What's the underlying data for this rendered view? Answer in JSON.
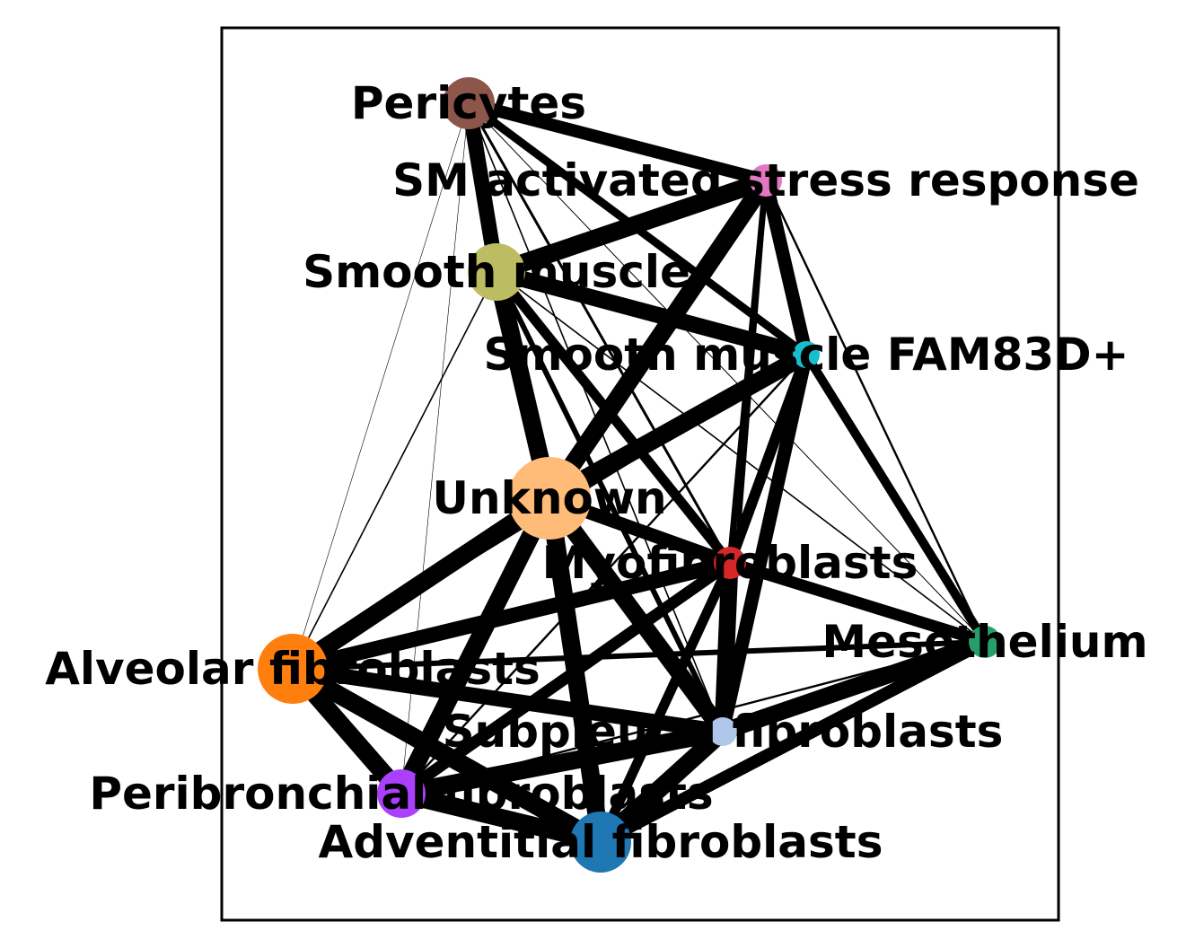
{
  "nodes": [
    {
      "id": "pericytes",
      "label": "Pericytes",
      "color": "#8c564b"
    },
    {
      "id": "sm_activated",
      "label": "SM activated stress response",
      "color": "#e377c2"
    },
    {
      "id": "smooth_muscle",
      "label": "Smooth muscle",
      "color": "#bcbd62"
    },
    {
      "id": "smooth_muscle_fam83d",
      "label": "Smooth muscle FAM83D+",
      "color": "#17becf"
    },
    {
      "id": "unknown",
      "label": "Unknown",
      "color": "#ffbb78"
    },
    {
      "id": "myofibroblasts",
      "label": "Myofibroblasts",
      "color": "#d62728"
    },
    {
      "id": "mesothelium",
      "label": "Mesothelium",
      "color": "#279e68"
    },
    {
      "id": "alveolar_fibroblasts",
      "label": "Alveolar fibroblasts",
      "color": "#ff7f0e"
    },
    {
      "id": "subpleural_fibroblasts",
      "label": "Subpleural fibroblasts",
      "color": "#aec7e8"
    },
    {
      "id": "peribronchial_fibroblasts",
      "label": "Peribronchial fibroblasts",
      "color": "#aa40fc"
    },
    {
      "id": "adventitial_fibroblasts",
      "label": "Adventitial fibroblasts",
      "color": "#1f77b4"
    }
  ],
  "edges": [
    {
      "source": "pericytes",
      "target": "smooth_muscle",
      "weight": 0.85
    },
    {
      "source": "pericytes",
      "target": "sm_activated",
      "weight": 0.7
    },
    {
      "source": "pericytes",
      "target": "smooth_muscle_fam83d",
      "weight": 0.45
    },
    {
      "source": "pericytes",
      "target": "unknown",
      "weight": 0.2
    },
    {
      "source": "pericytes",
      "target": "myofibroblasts",
      "weight": 0.15
    },
    {
      "source": "pericytes",
      "target": "subpleural_fibroblasts",
      "weight": 0.08
    },
    {
      "source": "pericytes",
      "target": "alveolar_fibroblasts",
      "weight": 0.03
    },
    {
      "source": "pericytes",
      "target": "peribronchial_fibroblasts",
      "weight": 0.02
    },
    {
      "source": "pericytes",
      "target": "adventitial_fibroblasts",
      "weight": 0.02
    },
    {
      "source": "pericytes",
      "target": "mesothelium",
      "weight": 0.05
    },
    {
      "source": "sm_activated",
      "target": "smooth_muscle",
      "weight": 1.0
    },
    {
      "source": "sm_activated",
      "target": "smooth_muscle_fam83d",
      "weight": 0.75
    },
    {
      "source": "sm_activated",
      "target": "unknown",
      "weight": 1.0
    },
    {
      "source": "sm_activated",
      "target": "myofibroblasts",
      "weight": 0.35
    },
    {
      "source": "sm_activated",
      "target": "mesothelium",
      "weight": 0.12
    },
    {
      "source": "sm_activated",
      "target": "subpleural_fibroblasts",
      "weight": 0.25
    },
    {
      "source": "smooth_muscle",
      "target": "smooth_muscle_fam83d",
      "weight": 0.9
    },
    {
      "source": "smooth_muscle",
      "target": "unknown",
      "weight": 1.0
    },
    {
      "source": "smooth_muscle",
      "target": "myofibroblasts",
      "weight": 0.55
    },
    {
      "source": "smooth_muscle",
      "target": "subpleural_fibroblasts",
      "weight": 0.3
    },
    {
      "source": "smooth_muscle",
      "target": "mesothelium",
      "weight": 0.08
    },
    {
      "source": "smooth_muscle",
      "target": "alveolar_fibroblasts",
      "weight": 0.08
    },
    {
      "source": "smooth_muscle_fam83d",
      "target": "unknown",
      "weight": 1.0
    },
    {
      "source": "smooth_muscle_fam83d",
      "target": "myofibroblasts",
      "weight": 0.6
    },
    {
      "source": "smooth_muscle_fam83d",
      "target": "mesothelium",
      "weight": 0.5
    },
    {
      "source": "smooth_muscle_fam83d",
      "target": "subpleural_fibroblasts",
      "weight": 0.75
    },
    {
      "source": "smooth_muscle_fam83d",
      "target": "alveolar_fibroblasts",
      "weight": 0.1
    },
    {
      "source": "smooth_muscle_fam83d",
      "target": "peribronchial_fibroblasts",
      "weight": 0.12
    },
    {
      "source": "unknown",
      "target": "myofibroblasts",
      "weight": 0.75
    },
    {
      "source": "unknown",
      "target": "alveolar_fibroblasts",
      "weight": 1.0
    },
    {
      "source": "unknown",
      "target": "subpleural_fibroblasts",
      "weight": 0.95
    },
    {
      "source": "unknown",
      "target": "peribronchial_fibroblasts",
      "weight": 1.0
    },
    {
      "source": "unknown",
      "target": "adventitial_fibroblasts",
      "weight": 1.0
    },
    {
      "source": "unknown",
      "target": "mesothelium",
      "weight": 0.12
    },
    {
      "source": "myofibroblasts",
      "target": "mesothelium",
      "weight": 0.65
    },
    {
      "source": "myofibroblasts",
      "target": "alveolar_fibroblasts",
      "weight": 0.85
    },
    {
      "source": "myofibroblasts",
      "target": "subpleural_fibroblasts",
      "weight": 0.95
    },
    {
      "source": "myofibroblasts",
      "target": "peribronchial_fibroblasts",
      "weight": 0.65
    },
    {
      "source": "myofibroblasts",
      "target": "adventitial_fibroblasts",
      "weight": 0.55
    },
    {
      "source": "mesothelium",
      "target": "alveolar_fibroblasts",
      "weight": 0.3
    },
    {
      "source": "mesothelium",
      "target": "subpleural_fibroblasts",
      "weight": 0.95
    },
    {
      "source": "mesothelium",
      "target": "adventitial_fibroblasts",
      "weight": 0.7
    },
    {
      "source": "mesothelium",
      "target": "peribronchial_fibroblasts",
      "weight": 0.12
    },
    {
      "source": "alveolar_fibroblasts",
      "target": "subpleural_fibroblasts",
      "weight": 0.85
    },
    {
      "source": "alveolar_fibroblasts",
      "target": "peribronchial_fibroblasts",
      "weight": 1.0
    },
    {
      "source": "alveolar_fibroblasts",
      "target": "adventitial_fibroblasts",
      "weight": 1.0
    },
    {
      "source": "subpleural_fibroblasts",
      "target": "peribronchial_fibroblasts",
      "weight": 1.0
    },
    {
      "source": "subpleural_fibroblasts",
      "target": "adventitial_fibroblasts",
      "weight": 1.0
    },
    {
      "source": "peribronchial_fibroblasts",
      "target": "adventitial_fibroblasts",
      "weight": 1.0
    }
  ]
}
